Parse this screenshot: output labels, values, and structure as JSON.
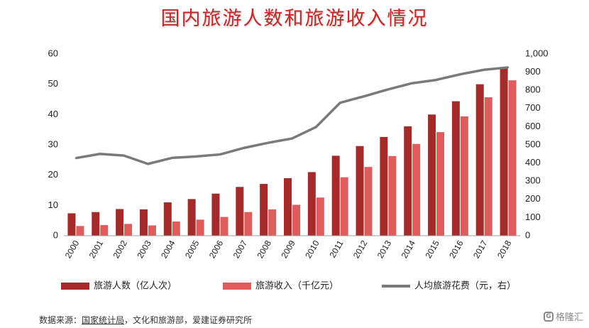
{
  "title": "国内旅游人数和旅游收入情况",
  "source": {
    "label": "数据来源：",
    "org": "国家统计局",
    "rest": "，文化和旅游部，爱建证券研究所"
  },
  "watermark": "格隆汇",
  "colors": {
    "people": "#a52a2a",
    "revenue": "#e05c5c",
    "spend": "#7a7a7a",
    "title": "#c62828"
  },
  "chart_data": {
    "type": "bar",
    "categories": [
      "2000",
      "2001",
      "2002",
      "2003",
      "2004",
      "2005",
      "2006",
      "2007",
      "2008",
      "2009",
      "2010",
      "2011",
      "2012",
      "2013",
      "2014",
      "2015",
      "2016",
      "2017",
      "2018"
    ],
    "series": [
      {
        "name": "旅游人数（亿人次）",
        "type": "bar",
        "axis": "left",
        "values": [
          7.4,
          7.8,
          8.8,
          8.7,
          11.0,
          12.1,
          13.9,
          16.1,
          17.1,
          19.0,
          21.0,
          26.4,
          29.6,
          32.6,
          36.1,
          40.0,
          44.4,
          50.0,
          55.4
        ]
      },
      {
        "name": "旅游收入（千亿元）",
        "type": "bar",
        "axis": "left",
        "values": [
          3.2,
          3.5,
          3.9,
          3.4,
          4.7,
          5.3,
          6.2,
          7.8,
          8.7,
          10.2,
          12.6,
          19.3,
          22.7,
          26.3,
          30.3,
          34.2,
          39.4,
          45.7,
          51.3
        ]
      },
      {
        "name": "人均旅游花费（元，右）",
        "type": "line",
        "axis": "right",
        "values": [
          427,
          450,
          441,
          395,
          428,
          436,
          447,
          483,
          511,
          535,
          598,
          731,
          767,
          805,
          839,
          857,
          888,
          913,
          926
        ]
      }
    ],
    "ylim_left": [
      0,
      60
    ],
    "yticks_left": [
      "0",
      "10",
      "20",
      "30",
      "40",
      "50",
      "60"
    ],
    "ylim_right": [
      0,
      1000
    ],
    "yticks_right": [
      "0",
      "100",
      "200",
      "300",
      "400",
      "500",
      "600",
      "700",
      "800",
      "900",
      "1,000"
    ],
    "legend": [
      "旅游人数（亿人次）",
      "旅游收入（千亿元）",
      "人均旅游花费（元，右）"
    ],
    "legend_position": "bottom",
    "grid": false
  }
}
